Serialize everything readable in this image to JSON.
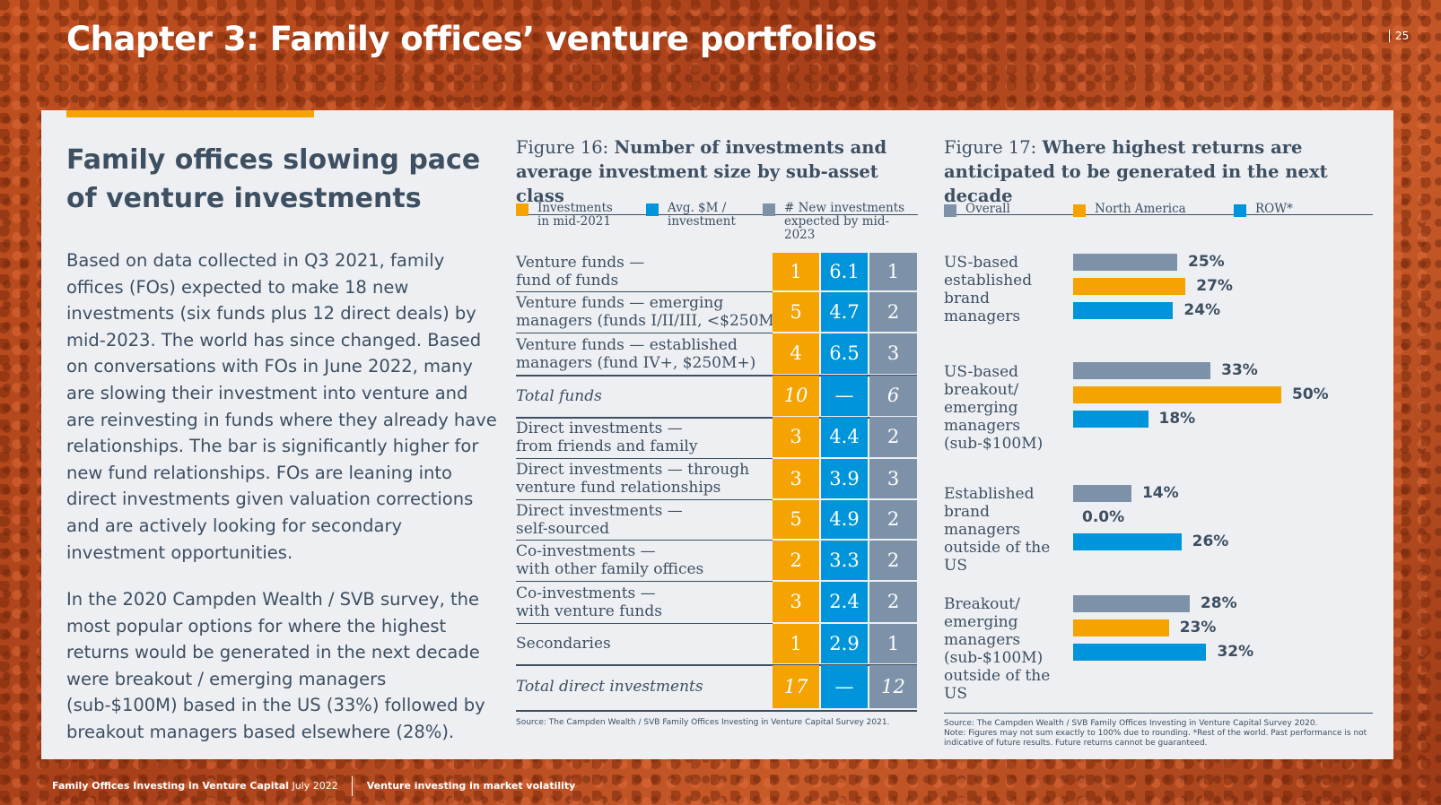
{
  "page": {
    "title": "Chapter 3: Family offices’ venture portfolios",
    "page_number": "25"
  },
  "left": {
    "heading": "Family offices slowing pace of venture investments",
    "paragraph1": "Based on data collected in Q3 2021, family offices (FOs) expected to make 18 new investments (six funds plus 12 direct deals) by mid-2023. The world has since changed. Based on conversations with FOs in June 2022, many are slowing their investment into venture and are reinvesting in funds where they already have relationships. The bar is significantly higher for new fund relationships. FOs are leaning into direct investments given valuation corrections and are actively looking for secondary investment opportunities.",
    "paragraph2": "In the 2020 Campden Wealth / SVB survey, the most popular options for where the highest returns would be generated in the next decade were breakout / emerging managers (sub-$100M) based in the US (33%) followed by breakout managers based elsewhere (28%)."
  },
  "fig16": {
    "prefix": "Figure 16: ",
    "title": "Number of investments and average investment size by sub-asset class",
    "legend": [
      {
        "label": "Investments in mid-2021",
        "color": "#f4a300"
      },
      {
        "label": "Avg. $M / investment",
        "color": "#0095da"
      },
      {
        "label": "# New investments expected by mid-2023",
        "color": "#7d92a8"
      }
    ],
    "rows": [
      {
        "label": "Venture funds —\nfund of funds",
        "v1": "1",
        "v2": "6.1",
        "v3": "1"
      },
      {
        "label": "Venture funds — emerging\nmanagers (funds I/II/III, <$250M)",
        "v1": "5",
        "v2": "4.7",
        "v3": "2"
      },
      {
        "label": "Venture funds — established\nmanagers (fund IV+, $250M+)",
        "v1": "4",
        "v2": "6.5",
        "v3": "3"
      },
      {
        "label": "Total funds",
        "v1": "10",
        "v2": "—",
        "v3": "6",
        "total": true
      },
      {
        "label": "Direct investments —\nfrom friends and family",
        "v1": "3",
        "v2": "4.4",
        "v3": "2"
      },
      {
        "label": "Direct investments — through\nventure fund relationships",
        "v1": "3",
        "v2": "3.9",
        "v3": "3"
      },
      {
        "label": "Direct investments —\nself-sourced",
        "v1": "5",
        "v2": "4.9",
        "v3": "2"
      },
      {
        "label": "Co-investments —\nwith other family offices",
        "v1": "2",
        "v2": "3.3",
        "v3": "2"
      },
      {
        "label": "Co-investments —\nwith venture funds",
        "v1": "3",
        "v2": "2.4",
        "v3": "2"
      },
      {
        "label": "Secondaries",
        "v1": "1",
        "v2": "2.9",
        "v3": "1"
      },
      {
        "label": "Total direct investments",
        "v1": "17",
        "v2": "—",
        "v3": "12",
        "total": true
      }
    ],
    "source": "Source: The Campden Wealth / SVB Family Offices Investing in Venture Capital Survey 2021."
  },
  "fig17": {
    "prefix": "Figure 17: ",
    "title": "Where highest returns are anticipated to be generated in the next decade",
    "source": "Source: The Campden Wealth / SVB Family Offices Investing in Venture Capital Survey 2020.",
    "note": "Note: Figures may not sum exactly to 100% due to rounding. *Rest of the world. Past performance is not indicative of future results. Future returns cannot be guaranteed."
  },
  "chart_data": {
    "type": "bar",
    "orientation": "horizontal",
    "categories": [
      "US-based established brand managers",
      "US-based breakout/ emerging managers (sub-$100M)",
      "Established brand managers outside of the US",
      "Breakout/ emerging managers (sub-$100M) outside of the US"
    ],
    "series": [
      {
        "name": "Overall",
        "color": "#7d92a8",
        "values": [
          25,
          33,
          14,
          28
        ],
        "labels": [
          "25%",
          "33%",
          "14%",
          "28%"
        ]
      },
      {
        "name": "North America",
        "color": "#f4a300",
        "values": [
          27,
          50,
          0,
          23
        ],
        "labels": [
          "27%",
          "50%",
          "0.0%",
          "23%"
        ]
      },
      {
        "name": "ROW*",
        "color": "#0095da",
        "values": [
          24,
          18,
          26,
          32
        ],
        "labels": [
          "24%",
          "18%",
          "26%",
          "32%"
        ]
      }
    ],
    "xlim": [
      0,
      50
    ],
    "legend": "top",
    "grid": false
  },
  "footer": {
    "report_title": "Family Offices Investing in Venture Capital",
    "date": "July 2022",
    "section": "Venture investing in market volatility"
  }
}
